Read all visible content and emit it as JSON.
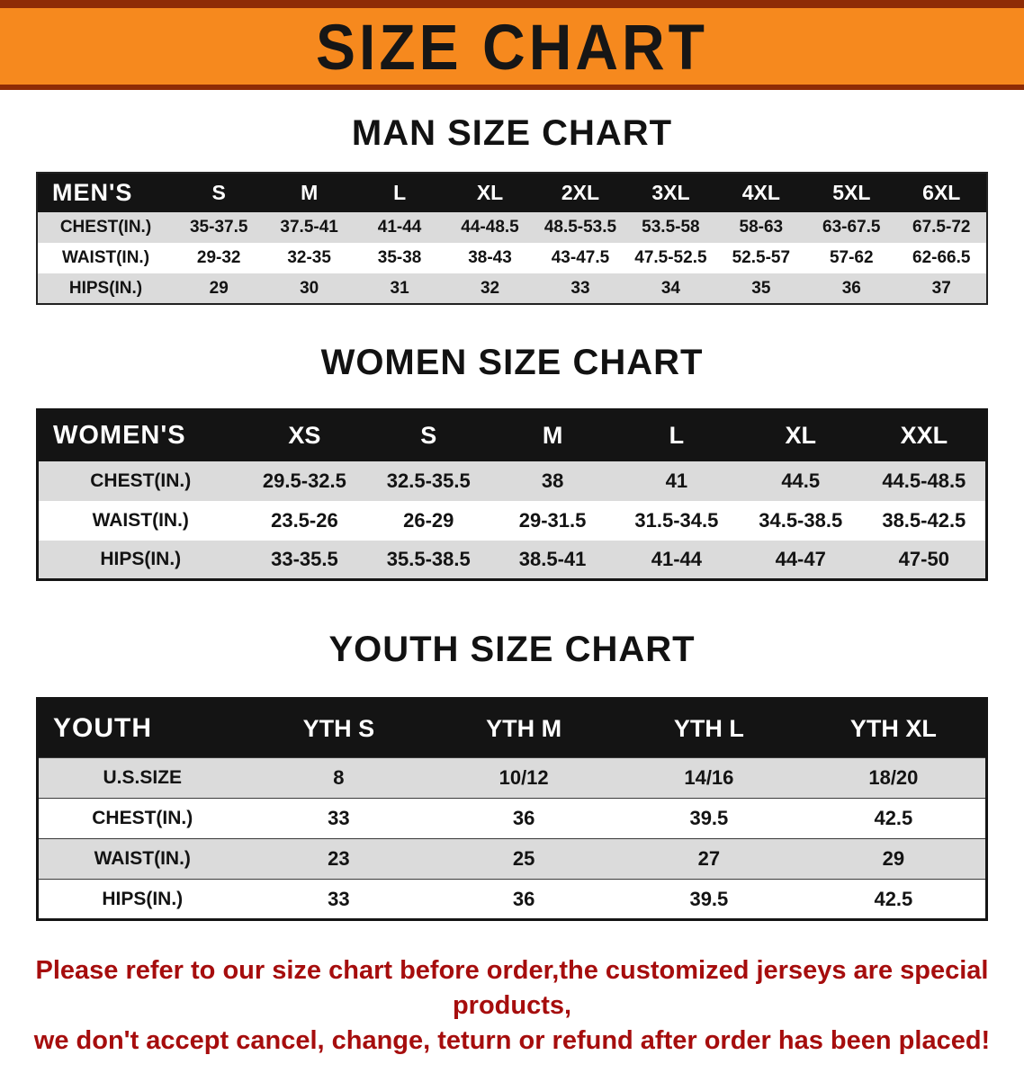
{
  "banner": {
    "title": "SIZE CHART"
  },
  "men": {
    "heading": "MAN SIZE CHART",
    "header": [
      "MEN'S",
      "S",
      "M",
      "L",
      "XL",
      "2XL",
      "3XL",
      "4XL",
      "5XL",
      "6XL"
    ],
    "rows": [
      [
        "CHEST(IN.)",
        "35-37.5",
        "37.5-41",
        "41-44",
        "44-48.5",
        "48.5-53.5",
        "53.5-58",
        "58-63",
        "63-67.5",
        "67.5-72"
      ],
      [
        "WAIST(IN.)",
        "29-32",
        "32-35",
        "35-38",
        "38-43",
        "43-47.5",
        "47.5-52.5",
        "52.5-57",
        "57-62",
        "62-66.5"
      ],
      [
        "HIPS(IN.)",
        "29",
        "30",
        "31",
        "32",
        "33",
        "34",
        "35",
        "36",
        "37"
      ]
    ]
  },
  "women": {
    "heading": "WOMEN SIZE CHART",
    "header": [
      "WOMEN'S",
      "XS",
      "S",
      "M",
      "L",
      "XL",
      "XXL"
    ],
    "rows": [
      [
        "CHEST(IN.)",
        "29.5-32.5",
        "32.5-35.5",
        "38",
        "41",
        "44.5",
        "44.5-48.5"
      ],
      [
        "WAIST(IN.)",
        "23.5-26",
        "26-29",
        "29-31.5",
        "31.5-34.5",
        "34.5-38.5",
        "38.5-42.5"
      ],
      [
        "HIPS(IN.)",
        "33-35.5",
        "35.5-38.5",
        "38.5-41",
        "41-44",
        "44-47",
        "47-50"
      ]
    ]
  },
  "youth": {
    "heading": "YOUTH SIZE CHART",
    "header": [
      "YOUTH",
      "YTH S",
      "YTH M",
      "YTH L",
      "YTH XL"
    ],
    "rows": [
      [
        "U.S.SIZE",
        "8",
        "10/12",
        "14/16",
        "18/20"
      ],
      [
        "CHEST(IN.)",
        "33",
        "36",
        "39.5",
        "42.5"
      ],
      [
        "WAIST(IN.)",
        "23",
        "25",
        "27",
        "29"
      ],
      [
        "HIPS(IN.)",
        "33",
        "36",
        "39.5",
        "42.5"
      ]
    ]
  },
  "footer": {
    "line1": "Please refer to our size chart before order,the customized jerseys are special products,",
    "line2": "we don't accept cancel, change, teturn or refund after order has been placed!"
  },
  "colors": {
    "banner_bg": "#F6891E",
    "banner_edge": "#8E2C06",
    "header_bg": "#141414",
    "row_alt": "#DBDBDB",
    "footer_text": "#A60D0D"
  }
}
